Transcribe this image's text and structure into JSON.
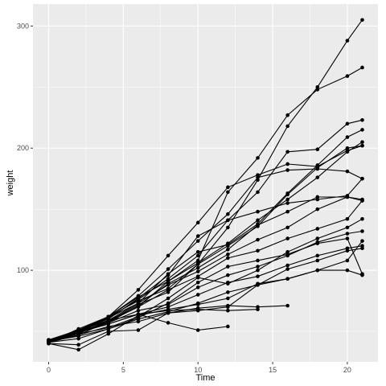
{
  "chart_data": {
    "type": "line",
    "xlabel": "Time",
    "ylabel": "weight",
    "xlim": [
      -1.05,
      22.05
    ],
    "ylim": [
      25,
      318
    ],
    "x_ticks": [
      0,
      5,
      10,
      15,
      20
    ],
    "x_tick_labels": [
      "0",
      "5",
      "10",
      "15",
      "20"
    ],
    "y_ticks": [
      100,
      200,
      300
    ],
    "y_tick_labels": [
      "100",
      "200",
      "300"
    ],
    "grid": true,
    "legend": "none",
    "background": "#ebebeb",
    "grid_major_color": "#ffffff",
    "line_color": "#000000",
    "series": [
      {
        "x": [
          0,
          2,
          4,
          6,
          8,
          10,
          12
        ],
        "values": [
          42,
          51,
          59,
          64,
          57,
          51,
          54
        ]
      },
      {
        "x": [
          0,
          2,
          4,
          6,
          8,
          10,
          12,
          14
        ],
        "values": [
          41,
          49,
          56,
          64,
          67,
          68,
          67,
          68
        ]
      },
      {
        "x": [
          0,
          2,
          4,
          6,
          8,
          10,
          12,
          14,
          16
        ],
        "values": [
          40,
          39,
          50,
          51,
          65,
          69,
          71,
          70,
          71
        ]
      },
      {
        "x": [
          0,
          2,
          4,
          6,
          8,
          10,
          12,
          14,
          16,
          18,
          20,
          21
        ],
        "values": [
          40,
          35,
          48,
          63,
          68,
          72,
          77,
          89,
          93,
          100,
          100,
          96
        ]
      },
      {
        "x": [
          0,
          2,
          4,
          6,
          8,
          10,
          12,
          14,
          16,
          18,
          20,
          21
        ],
        "values": [
          42,
          46,
          52,
          60,
          66,
          73,
          82,
          88,
          101,
          108,
          116,
          118
        ]
      },
      {
        "x": [
          0,
          2,
          4,
          6,
          8,
          10,
          12,
          14,
          16,
          18,
          20,
          21
        ],
        "values": [
          41,
          47,
          54,
          58,
          65,
          67,
          70,
          88,
          93,
          100,
          108,
          124
        ]
      },
      {
        "x": [
          0,
          2,
          4,
          6,
          8,
          10,
          12,
          14,
          16,
          18,
          20,
          21
        ],
        "values": [
          43,
          49,
          56,
          64,
          70,
          80,
          90,
          95,
          104,
          112,
          118,
          120
        ]
      },
      {
        "x": [
          0,
          2,
          4,
          6,
          8,
          10,
          12,
          14,
          16,
          18,
          20,
          21
        ],
        "values": [
          42,
          50,
          57,
          67,
          72,
          86,
          96,
          103,
          112,
          123,
          130,
          132
        ]
      },
      {
        "x": [
          0,
          2,
          4,
          6,
          8,
          10,
          12,
          14,
          16,
          18,
          20,
          21
        ],
        "values": [
          41,
          44,
          52,
          61,
          73,
          90,
          103,
          108,
          113,
          122,
          126,
          97
        ]
      },
      {
        "x": [
          0,
          2,
          4,
          6,
          8,
          10,
          12,
          14,
          16,
          18,
          20,
          21
        ],
        "values": [
          42,
          48,
          53,
          62,
          77,
          94,
          89,
          100,
          115,
          126,
          135,
          142
        ]
      },
      {
        "x": [
          0,
          2,
          4,
          6,
          8,
          10,
          12,
          14,
          16,
          18,
          20,
          21
        ],
        "values": [
          41,
          48,
          59,
          70,
          84,
          95,
          110,
          116,
          126,
          134,
          142,
          157
        ]
      },
      {
        "x": [
          0,
          2,
          4,
          6,
          8,
          10,
          12,
          14,
          16,
          18,
          20,
          21
        ],
        "values": [
          43,
          51,
          61,
          73,
          88,
          99,
          113,
          125,
          135,
          150,
          160,
          158
        ]
      },
      {
        "x": [
          0,
          2,
          4,
          6,
          8,
          10,
          12,
          14,
          16,
          18,
          20,
          21
        ],
        "values": [
          41,
          49,
          57,
          71,
          89,
          102,
          117,
          137,
          148,
          160,
          160,
          157
        ]
      },
      {
        "x": [
          0,
          2,
          4,
          6,
          8,
          10,
          12,
          14,
          16,
          18,
          20,
          21
        ],
        "values": [
          42,
          49,
          58,
          72,
          82,
          105,
          120,
          136,
          162,
          184,
          200,
          202
        ]
      },
      {
        "x": [
          0,
          2,
          4,
          6,
          8,
          10,
          12,
          14,
          16,
          18,
          20,
          21
        ],
        "values": [
          41,
          47,
          58,
          70,
          91,
          106,
          122,
          141,
          158,
          176,
          197,
          205
        ]
      },
      {
        "x": [
          0,
          2,
          4,
          6,
          8,
          10,
          12,
          14,
          16,
          18,
          20,
          21
        ],
        "values": [
          41,
          49,
          61,
          76,
          93,
          112,
          141,
          148,
          155,
          158,
          161,
          175
        ]
      },
      {
        "x": [
          0,
          2,
          4,
          6,
          8,
          10,
          12,
          14,
          16,
          18,
          20,
          21
        ],
        "values": [
          42,
          50,
          59,
          73,
          97,
          115,
          121,
          138,
          163,
          186,
          209,
          215
        ]
      },
      {
        "x": [
          0,
          2,
          4,
          6,
          8,
          10,
          12,
          14,
          16,
          18,
          20,
          21
        ],
        "values": [
          42,
          49,
          62,
          79,
          101,
          124,
          146,
          176,
          182,
          183,
          181,
          175
        ]
      },
      {
        "x": [
          0,
          2,
          4,
          6,
          8,
          10,
          12,
          14,
          16,
          18,
          20,
          21
        ],
        "values": [
          42,
          51,
          60,
          77,
          96,
          128,
          141,
          164,
          197,
          199,
          220,
          223
        ]
      },
      {
        "x": [
          0,
          2,
          4,
          6,
          8,
          10,
          12,
          14,
          16,
          18,
          20,
          21
        ],
        "values": [
          43,
          50,
          62,
          84,
          112,
          139,
          168,
          178,
          187,
          185,
          198,
          202
        ]
      },
      {
        "x": [
          0,
          2,
          4,
          6,
          8,
          10,
          12,
          14,
          16,
          18,
          20,
          21
        ],
        "values": [
          41,
          52,
          62,
          78,
          91,
          108,
          164,
          192,
          227,
          248,
          259,
          266
        ]
      },
      {
        "x": [
          0,
          2,
          4,
          6,
          8,
          10,
          12,
          14,
          16,
          18,
          20,
          21
        ],
        "values": [
          41,
          51,
          62,
          75,
          85,
          105,
          135,
          174,
          218,
          250,
          288,
          305
        ]
      }
    ]
  }
}
